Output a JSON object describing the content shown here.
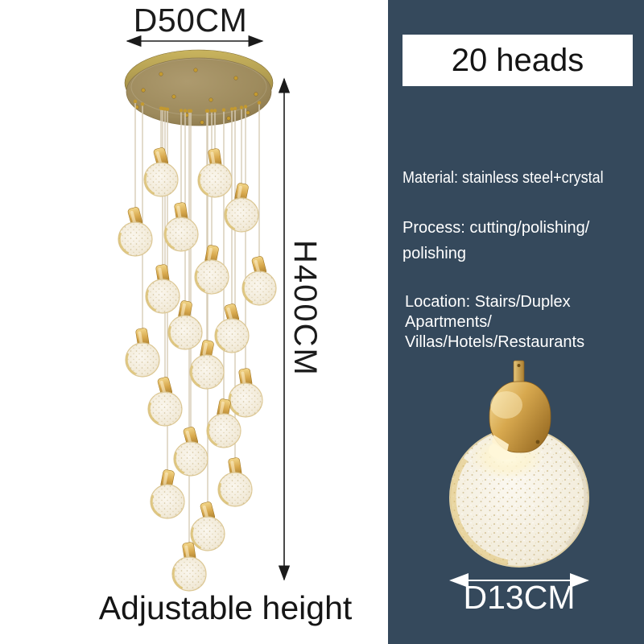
{
  "left": {
    "diameter_label": "D50CM",
    "height_label": "H400CM",
    "adjustable_label": "Adjustable height"
  },
  "right": {
    "heads_badge": "20 heads",
    "material": "Material: stainless steel+crystal",
    "process_lines": [
      "Process: cutting/polishing/",
      "polishing"
    ],
    "location_lines": [
      "Location: Stairs/Duplex",
      "Apartments/",
      "Villas/Hotels/Restaurants"
    ],
    "pendant_diameter_label": "D13CM"
  },
  "product": {
    "heads_count": "20",
    "canopy_diameter_cm": "50",
    "height_cm": "400",
    "pendant_diameter_cm": "13"
  },
  "icons": {
    "canopy_diameter_arrow": "horizontal-double-arrow",
    "height_arrow": "vertical-double-arrow",
    "pendant_diameter_arrow": "horizontal-double-arrow"
  },
  "colors": {
    "right_panel_bg": "#35495c",
    "badge_bg": "#ffffff",
    "badge_text": "#141414",
    "spec_text": "#ffffff",
    "dimension_text": "#1b1b1b",
    "canopy_gold": "#a18c60",
    "cap_gold": "#c79a3f",
    "crystal_ivory": "#f3ecdc"
  }
}
